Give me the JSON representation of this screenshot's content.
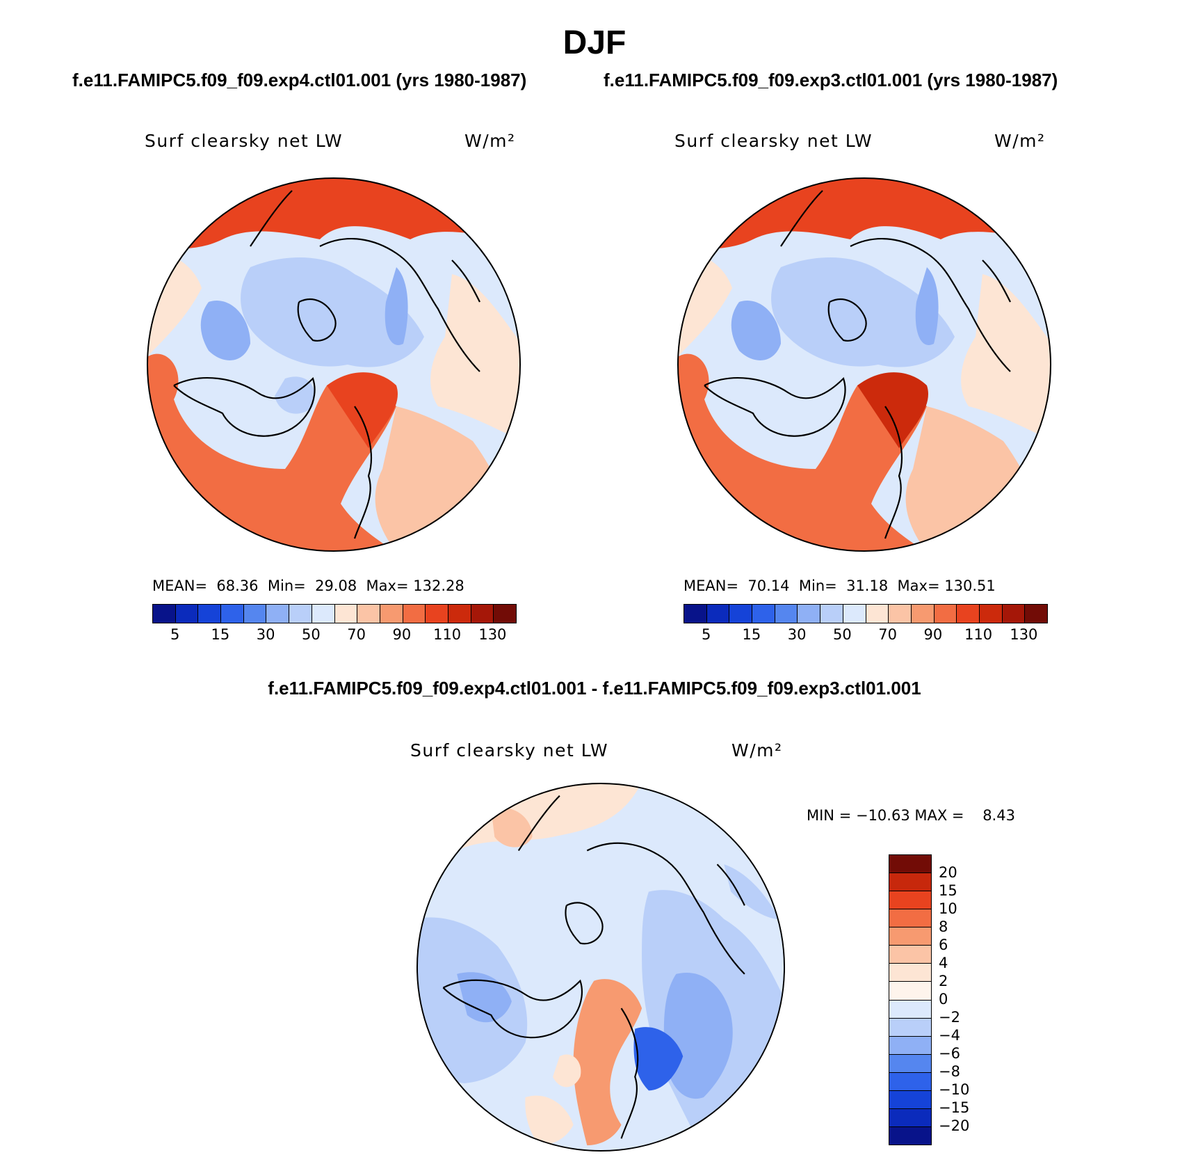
{
  "title": "DJF",
  "subtitles": {
    "left": "f.e11.FAMIPC5.f09_f09.exp4.ctl01.001 (yrs 1980-1987)",
    "right": "f.e11.FAMIPC5.f09_f09.exp3.ctl01.001 (yrs 1980-1987)",
    "diff": "f.e11.FAMIPC5.f09_f09.exp4.ctl01.001 - f.e11.FAMIPC5.f09_f09.exp3.ctl01.001"
  },
  "panels": [
    {
      "variable": "Surf clearsky net LW",
      "units": "W/m²",
      "stats": "MEAN=  68.36  Min=  29.08  Max= 132.28"
    },
    {
      "variable": "Surf clearsky net LW",
      "units": "W/m²",
      "stats": "MEAN=  70.14  Min=  31.18  Max= 130.51"
    },
    {
      "variable": "Surf clearsky net LW",
      "units": "W/m²",
      "stats": "MIN = −10.63 MAX =    8.43"
    }
  ],
  "colorbar_abs": {
    "colors": [
      "#08138a",
      "#0b2bbc",
      "#1543d8",
      "#2e62ea",
      "#5586ef",
      "#8fb0f5",
      "#b9cff9",
      "#dce9fc",
      "#fde5d4",
      "#fbc4a6",
      "#f79a70",
      "#f26d43",
      "#e8431f",
      "#cc2a0c",
      "#a51708",
      "#720c06"
    ],
    "ticks": [
      "5",
      "15",
      "30",
      "50",
      "70",
      "90",
      "110",
      "130"
    ]
  },
  "colorbar_diff": {
    "colors": [
      "#720c06",
      "#c7280c",
      "#e8431f",
      "#f26d43",
      "#f79a70",
      "#fbc4a6",
      "#fde5d4",
      "#fef4ec",
      "#dce9fc",
      "#b9cff9",
      "#8fb0f5",
      "#5586ef",
      "#2e62ea",
      "#1543d8",
      "#0b2bbc",
      "#08138a"
    ],
    "ticks": [
      "20",
      "15",
      "10",
      "8",
      "6",
      "4",
      "2",
      "0",
      "−2",
      "−4",
      "−6",
      "−8",
      "−10",
      "−15",
      "−20"
    ]
  },
  "chart_data": [
    {
      "type": "heatmap",
      "projection": "north-polar-stereographic",
      "title": "Surf clearsky net LW",
      "units": "W/m²",
      "case": "f.e11.FAMIPC5.f09_f09.exp4.ctl01.001 (yrs 1980-1987)",
      "mean": 68.36,
      "min": 29.08,
      "max": 132.28,
      "levels": [
        5,
        10,
        15,
        20,
        30,
        40,
        50,
        60,
        70,
        80,
        90,
        100,
        110,
        120,
        130
      ]
    },
    {
      "type": "heatmap",
      "projection": "north-polar-stereographic",
      "title": "Surf clearsky net LW",
      "units": "W/m²",
      "case": "f.e11.FAMIPC5.f09_f09.exp3.ctl01.001 (yrs 1980-1987)",
      "mean": 70.14,
      "min": 31.18,
      "max": 130.51,
      "levels": [
        5,
        10,
        15,
        20,
        30,
        40,
        50,
        60,
        70,
        80,
        90,
        100,
        110,
        120,
        130
      ]
    },
    {
      "type": "heatmap",
      "projection": "north-polar-stereographic",
      "title": "Surf clearsky net LW",
      "units": "W/m²",
      "case": "f.e11.FAMIPC5.f09_f09.exp4.ctl01.001 - f.e11.FAMIPC5.f09_f09.exp3.ctl01.001",
      "min": -10.63,
      "max": 8.43,
      "levels": [
        -20,
        -15,
        -10,
        -8,
        -6,
        -4,
        -2,
        0,
        2,
        4,
        6,
        8,
        10,
        15,
        20
      ]
    }
  ]
}
